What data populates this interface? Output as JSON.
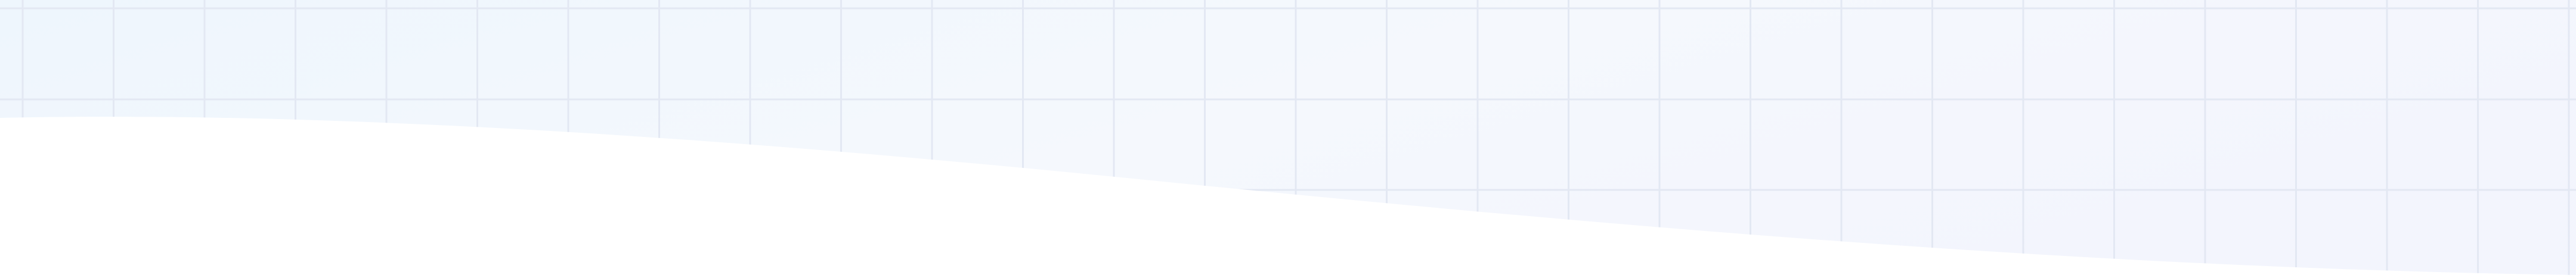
{
  "decoration": {
    "style": "faint grid on pale blue gradient with white wave below",
    "colors": {
      "grid_line": "#e3e8f3",
      "tint_left": "#eef6fd",
      "tint_mid": "#f5f8fd",
      "tint_right": "#f3f5fd",
      "wave_fill": "#ffffff"
    }
  }
}
